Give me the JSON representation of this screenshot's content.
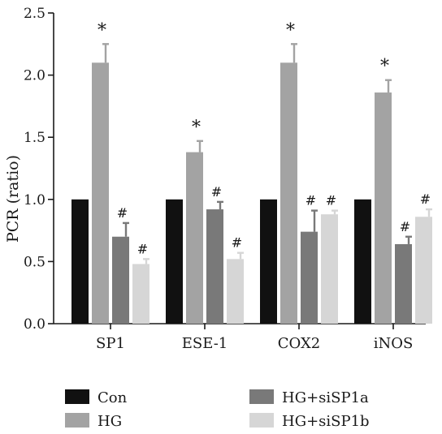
{
  "chart_data": {
    "type": "bar",
    "ylabel": "PCR (ratio)",
    "xlabel": "",
    "ylim": [
      0,
      2.5
    ],
    "yticks": [
      "0.0",
      "0.5",
      "1.0",
      "1.5",
      "2.0",
      "2.5"
    ],
    "categories": [
      "SP1",
      "ESE-1",
      "COX2",
      "iNOS"
    ],
    "series": [
      {
        "name": "Con",
        "color": "#111111",
        "values": [
          1.0,
          1.0,
          1.0,
          1.0
        ],
        "errors": [
          0,
          0,
          0,
          0
        ],
        "marks": [
          "",
          "",
          "",
          ""
        ]
      },
      {
        "name": "HG",
        "color": "#a3a3a3",
        "values": [
          2.1,
          1.38,
          2.1,
          1.86
        ],
        "errors": [
          0.15,
          0.09,
          0.15,
          0.1
        ],
        "marks": [
          "*",
          "*",
          "*",
          "*"
        ]
      },
      {
        "name": "HG+siSP1a",
        "color": "#797979",
        "values": [
          0.7,
          0.92,
          0.74,
          0.64
        ],
        "errors": [
          0.11,
          0.06,
          0.17,
          0.06
        ],
        "marks": [
          "#",
          "#",
          "#",
          "#"
        ]
      },
      {
        "name": "HG+siSP1b",
        "color": "#d6d6d6",
        "values": [
          0.48,
          0.52,
          0.88,
          0.86
        ],
        "errors": [
          0.04,
          0.05,
          0.03,
          0.06
        ],
        "marks": [
          "#",
          "#",
          "#",
          "#"
        ]
      }
    ],
    "grid": false,
    "legend_position": "bottom"
  }
}
